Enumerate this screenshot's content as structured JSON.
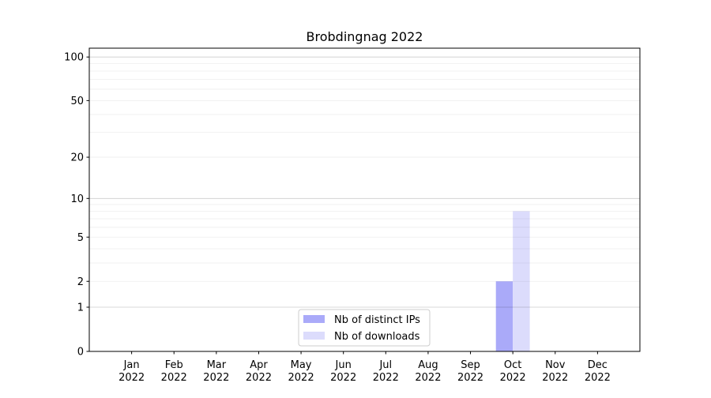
{
  "chart_data": {
    "type": "bar",
    "title": "Brobdingnag 2022",
    "xlabel": "",
    "ylabel": "",
    "yscale": "log(1+y)",
    "ylim": [
      0,
      115
    ],
    "xlim": [
      -1,
      12
    ],
    "yticks": [
      0,
      1,
      2,
      5,
      10,
      20,
      50,
      100
    ],
    "ytick_labels": [
      "0",
      "1",
      "2",
      "5",
      "10",
      "20",
      "50",
      "100"
    ],
    "grid": true,
    "categories": [
      "Jan\n2022",
      "Feb\n2022",
      "Mar\n2022",
      "Apr\n2022",
      "May\n2022",
      "Jun\n2022",
      "Jul\n2022",
      "Aug\n2022",
      "Sep\n2022",
      "Oct\n2022",
      "Nov\n2022",
      "Dec\n2022"
    ],
    "series": [
      {
        "name": "Nb of distinct IPs",
        "color": "#aaaaf9",
        "values": [
          0,
          0,
          0,
          0,
          0,
          0,
          0,
          0,
          0,
          2,
          0,
          0
        ]
      },
      {
        "name": "Nb of downloads",
        "color": "#dcdcfc",
        "values": [
          0,
          0,
          0,
          0,
          0,
          0,
          0,
          0,
          0,
          8,
          0,
          0
        ]
      }
    ],
    "legend_placement": "lower center"
  }
}
